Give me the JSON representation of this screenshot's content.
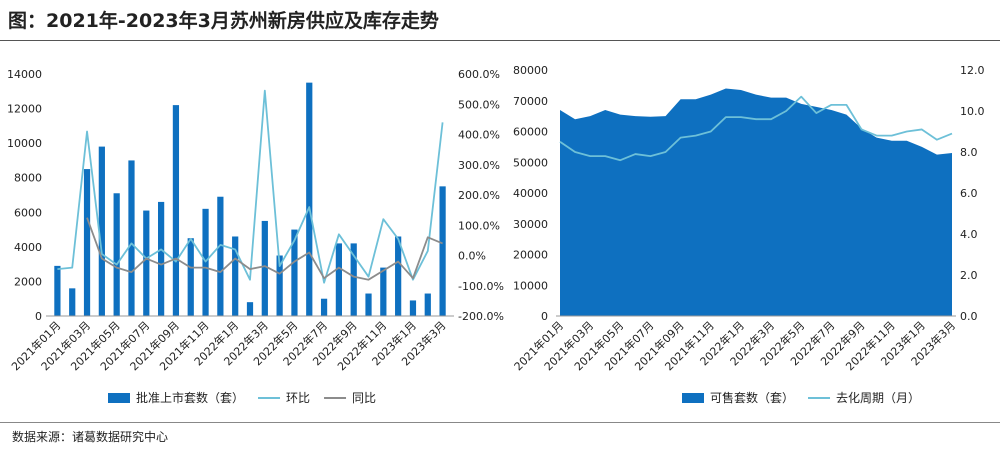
{
  "title": "图：2021年-2023年3月苏州新房供应及库存走势",
  "source": "数据来源：诸葛数据研究中心",
  "chart_data": [
    {
      "type": "bar",
      "x": [
        "2021年01月",
        "2021年02月",
        "2021年03月",
        "2021年04月",
        "2021年05月",
        "2021年06月",
        "2021年07月",
        "2021年08月",
        "2021年09月",
        "2021年10月",
        "2021年11月",
        "2021年12月",
        "2022年1月",
        "2022年2月",
        "2022年3月",
        "2022年4月",
        "2022年5月",
        "2022年6月",
        "2022年7月",
        "2022年8月",
        "2022年9月",
        "2022年10月",
        "2022年11月",
        "2022年12月",
        "2023年1月",
        "2023年2月",
        "2023年3月"
      ],
      "tick_labels": [
        "2021年01月",
        "2021年03月",
        "2021年05月",
        "2021年07月",
        "2021年09月",
        "2021年11月",
        "2022年1月",
        "2022年3月",
        "2022年5月",
        "2022年7月",
        "2022年9月",
        "2022年11月",
        "2023年1月",
        "2023年3月"
      ],
      "series": [
        {
          "name": "批准上市套数（套）",
          "type": "bar",
          "axis": "left",
          "color": "#0e70c0",
          "values": [
            2900,
            1600,
            8500,
            9800,
            7100,
            9000,
            6100,
            6600,
            12200,
            4500,
            6200,
            6900,
            4600,
            800,
            5500,
            3500,
            5000,
            13500,
            1000,
            4200,
            4200,
            1300,
            2800,
            4600,
            900,
            1300,
            7500
          ]
        },
        {
          "name": "环比",
          "type": "line",
          "axis": "right",
          "color": "#6dc0d8",
          "values": [
            -45,
            -40,
            410,
            5,
            -30,
            40,
            -10,
            20,
            -20,
            55,
            -20,
            35,
            20,
            -80,
            545,
            -35,
            50,
            160,
            -90,
            70,
            0,
            -70,
            120,
            55,
            -80,
            15,
            440
          ]
        },
        {
          "name": "同比",
          "type": "line",
          "axis": "right",
          "color": "#8c8c8c",
          "values": [
            null,
            null,
            125,
            -10,
            -40,
            -55,
            -10,
            -30,
            -10,
            -40,
            -40,
            -55,
            -10,
            -45,
            -35,
            -60,
            -20,
            10,
            -75,
            -40,
            -70,
            -80,
            -50,
            -20,
            -75,
            60,
            40
          ]
        }
      ],
      "y_left": {
        "min": 0,
        "max": 14000,
        "ticks": [
          "0",
          "2000",
          "4000",
          "6000",
          "8000",
          "10000",
          "12000",
          "14000"
        ]
      },
      "y_right": {
        "min": -200,
        "max": 600,
        "ticks": [
          "-200.0%",
          "-100.0%",
          "0.0%",
          "100.0%",
          "200.0%",
          "300.0%",
          "400.0%",
          "500.0%",
          "600.0%"
        ]
      },
      "legend": [
        "批准上市套数（套）",
        "环比",
        "同比"
      ],
      "legend_position": "bottom",
      "grid": false
    },
    {
      "type": "area",
      "x": [
        "2021年01月",
        "2021年02月",
        "2021年03月",
        "2021年04月",
        "2021年05月",
        "2021年06月",
        "2021年07月",
        "2021年08月",
        "2021年09月",
        "2021年10月",
        "2021年11月",
        "2021年12月",
        "2022年1月",
        "2022年2月",
        "2022年3月",
        "2022年4月",
        "2022年5月",
        "2022年6月",
        "2022年7月",
        "2022年8月",
        "2022年9月",
        "2022年10月",
        "2022年11月",
        "2022年12月",
        "2023年1月",
        "2023年2月",
        "2023年3月"
      ],
      "tick_labels": [
        "2021年01月",
        "2021年03月",
        "2021年05月",
        "2021年07月",
        "2021年09月",
        "2021年11月",
        "2022年1月",
        "2022年3月",
        "2022年5月",
        "2022年7月",
        "2022年9月",
        "2022年11月",
        "2023年1月",
        "2023年3月"
      ],
      "series": [
        {
          "name": "可售套数（套）",
          "type": "area",
          "axis": "left",
          "color": "#0e70c0",
          "values": [
            67000,
            64000,
            65000,
            67000,
            65500,
            65000,
            64800,
            65000,
            70500,
            70500,
            72000,
            74000,
            73500,
            72000,
            71000,
            71000,
            69000,
            68000,
            67000,
            65500,
            61000,
            58000,
            57000,
            57000,
            55000,
            52500,
            53000
          ]
        },
        {
          "name": "去化周期（月）",
          "type": "line",
          "axis": "right",
          "color": "#6dc0d8",
          "values": [
            8.5,
            8.0,
            7.8,
            7.8,
            7.6,
            7.9,
            7.8,
            8.0,
            8.7,
            8.8,
            9.0,
            9.7,
            9.7,
            9.6,
            9.6,
            10.0,
            10.7,
            9.9,
            10.3,
            10.3,
            9.1,
            8.8,
            8.8,
            9.0,
            9.1,
            8.6,
            8.9
          ]
        }
      ],
      "y_left": {
        "min": 0,
        "max": 80000,
        "ticks": [
          "0",
          "10000",
          "20000",
          "30000",
          "40000",
          "50000",
          "60000",
          "70000",
          "80000"
        ]
      },
      "y_right": {
        "min": 0,
        "max": 12,
        "ticks": [
          "0.0",
          "2.0",
          "4.0",
          "6.0",
          "8.0",
          "10.0",
          "12.0"
        ]
      },
      "legend": [
        "可售套数（套）",
        "去化周期（月）"
      ],
      "legend_position": "bottom",
      "grid": false
    }
  ]
}
